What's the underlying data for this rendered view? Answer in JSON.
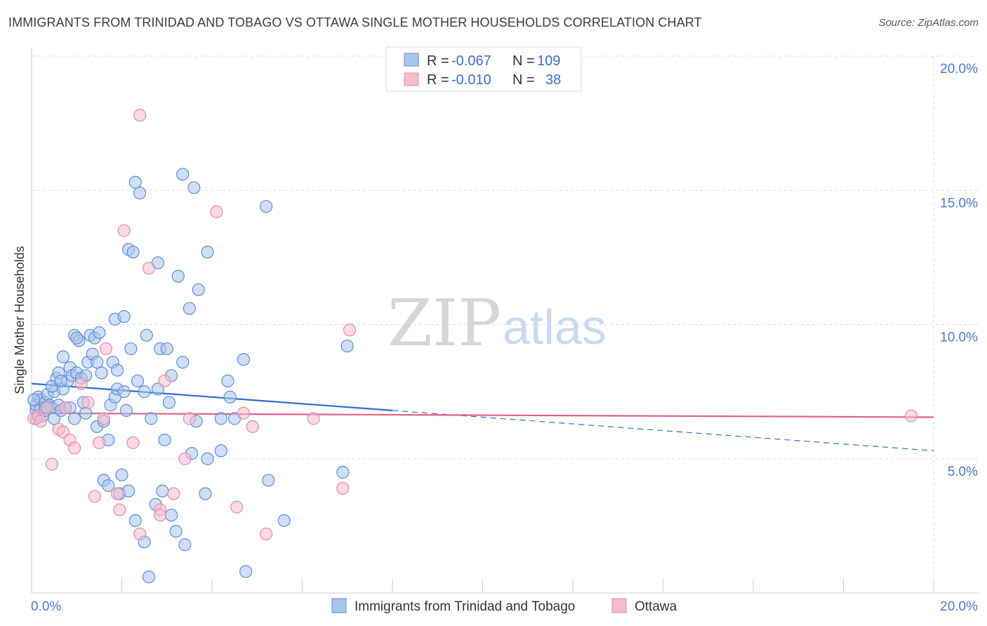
{
  "title": "IMMIGRANTS FROM TRINIDAD AND TOBAGO VS OTTAWA SINGLE MOTHER HOUSEHOLDS CORRELATION CHART",
  "source": "Source: ZipAtlas.com",
  "watermark": {
    "zip": "ZIP",
    "atlas": "atlas"
  },
  "legend": {
    "rows": [
      {
        "r_label": "R =",
        "r_value": "-0.067",
        "n_label": "N =",
        "n_value": "109"
      },
      {
        "r_label": "R =",
        "r_value": "-0.010",
        "n_label": "N =",
        "n_value": "38"
      }
    ]
  },
  "bottom_legend": {
    "items": [
      "Immigrants from Trinidad and Tobago",
      "Ottawa"
    ]
  },
  "colors": {
    "blue_fill": "#a9c5ee",
    "blue_stroke": "#5b8fd6",
    "blue_line": "#2f6fce",
    "pink_fill": "#f6bcd0",
    "pink_stroke": "#e58aa8",
    "pink_line": "#e0628a",
    "grid": "#dcdcdc",
    "axis_text": "#4a7bc8"
  },
  "chart_data": {
    "type": "scatter",
    "title": "IMMIGRANTS FROM TRINIDAD AND TOBAGO VS OTTAWA SINGLE MOTHER HOUSEHOLDS CORRELATION CHART",
    "xlabel": "",
    "ylabel": "Single Mother Households",
    "xlim": [
      0,
      20
    ],
    "ylim": [
      0,
      20
    ],
    "x_tick_labels": [
      "0.0%",
      "20.0%"
    ],
    "y_ticks": [
      5,
      10,
      15,
      20
    ],
    "y_tick_labels": [
      "5.0%",
      "10.0%",
      "15.0%",
      "20.0%"
    ],
    "grid": true,
    "legend_position": "top-center",
    "series": [
      {
        "name": "Immigrants from Trinidad and Tobago",
        "color": "#a9c5ee",
        "points": [
          [
            0.1,
            6.8
          ],
          [
            0.1,
            7.0
          ],
          [
            0.15,
            7.3
          ],
          [
            0.2,
            6.9
          ],
          [
            0.2,
            7.2
          ],
          [
            0.25,
            6.6
          ],
          [
            0.3,
            7.1
          ],
          [
            0.3,
            6.8
          ],
          [
            0.35,
            7.4
          ],
          [
            0.4,
            7.0
          ],
          [
            0.45,
            6.9
          ],
          [
            0.5,
            7.5
          ],
          [
            0.5,
            6.5
          ],
          [
            0.55,
            8.0
          ],
          [
            0.6,
            7.0
          ],
          [
            0.6,
            8.2
          ],
          [
            0.65,
            6.8
          ],
          [
            0.7,
            7.6
          ],
          [
            0.7,
            8.8
          ],
          [
            0.75,
            6.9
          ],
          [
            0.8,
            7.9
          ],
          [
            0.85,
            8.4
          ],
          [
            0.9,
            8.1
          ],
          [
            0.95,
            6.5
          ],
          [
            0.95,
            9.6
          ],
          [
            1.0,
            8.2
          ],
          [
            1.05,
            9.4
          ],
          [
            1.1,
            8.0
          ],
          [
            1.15,
            7.1
          ],
          [
            1.2,
            6.7
          ],
          [
            1.25,
            8.6
          ],
          [
            1.3,
            9.6
          ],
          [
            1.35,
            8.9
          ],
          [
            1.4,
            9.5
          ],
          [
            1.45,
            8.6
          ],
          [
            1.45,
            6.2
          ],
          [
            1.5,
            9.7
          ],
          [
            1.55,
            8.2
          ],
          [
            1.6,
            4.2
          ],
          [
            1.6,
            6.4
          ],
          [
            1.7,
            5.7
          ],
          [
            1.7,
            4.0
          ],
          [
            1.75,
            7.0
          ],
          [
            1.8,
            8.6
          ],
          [
            1.85,
            10.2
          ],
          [
            1.85,
            7.3
          ],
          [
            1.9,
            7.6
          ],
          [
            1.9,
            8.3
          ],
          [
            1.95,
            3.7
          ],
          [
            2.0,
            4.4
          ],
          [
            2.05,
            7.5
          ],
          [
            2.05,
            10.3
          ],
          [
            2.1,
            6.8
          ],
          [
            2.15,
            12.8
          ],
          [
            2.15,
            3.8
          ],
          [
            2.2,
            9.1
          ],
          [
            2.25,
            12.7
          ],
          [
            2.3,
            15.3
          ],
          [
            2.3,
            2.7
          ],
          [
            2.35,
            7.9
          ],
          [
            2.4,
            14.9
          ],
          [
            2.5,
            1.9
          ],
          [
            2.5,
            7.5
          ],
          [
            2.55,
            9.6
          ],
          [
            2.6,
            0.6
          ],
          [
            2.65,
            6.5
          ],
          [
            2.75,
            3.3
          ],
          [
            2.8,
            12.3
          ],
          [
            2.8,
            7.6
          ],
          [
            2.85,
            9.1
          ],
          [
            2.9,
            3.8
          ],
          [
            2.95,
            5.7
          ],
          [
            3.0,
            9.1
          ],
          [
            3.05,
            7.1
          ],
          [
            3.1,
            8.1
          ],
          [
            3.1,
            2.9
          ],
          [
            3.2,
            2.3
          ],
          [
            3.25,
            11.8
          ],
          [
            3.35,
            15.6
          ],
          [
            3.35,
            8.6
          ],
          [
            3.4,
            1.8
          ],
          [
            3.5,
            10.6
          ],
          [
            3.55,
            5.2
          ],
          [
            3.6,
            15.1
          ],
          [
            3.65,
            6.4
          ],
          [
            3.7,
            11.3
          ],
          [
            3.85,
            3.7
          ],
          [
            3.9,
            12.7
          ],
          [
            3.9,
            5.0
          ],
          [
            4.2,
            5.3
          ],
          [
            4.2,
            6.5
          ],
          [
            4.35,
            7.9
          ],
          [
            4.4,
            7.3
          ],
          [
            4.5,
            6.5
          ],
          [
            4.7,
            8.7
          ],
          [
            4.75,
            0.8
          ],
          [
            5.2,
            14.4
          ],
          [
            5.25,
            4.2
          ],
          [
            5.6,
            2.7
          ],
          [
            6.9,
            4.5
          ],
          [
            7.0,
            9.2
          ],
          [
            0.05,
            7.2
          ],
          [
            0.1,
            6.5
          ],
          [
            0.3,
            6.9
          ],
          [
            0.45,
            7.7
          ],
          [
            0.65,
            7.9
          ],
          [
            0.85,
            6.9
          ],
          [
            1.0,
            9.5
          ],
          [
            1.2,
            8.1
          ]
        ]
      },
      {
        "name": "Ottawa",
        "color": "#f6bcd0",
        "points": [
          [
            0.05,
            6.5
          ],
          [
            0.15,
            6.6
          ],
          [
            0.2,
            6.4
          ],
          [
            0.35,
            6.9
          ],
          [
            0.45,
            4.8
          ],
          [
            0.6,
            6.1
          ],
          [
            0.7,
            6.0
          ],
          [
            0.75,
            6.9
          ],
          [
            0.85,
            5.7
          ],
          [
            0.95,
            5.4
          ],
          [
            1.1,
            7.8
          ],
          [
            1.25,
            7.1
          ],
          [
            1.4,
            3.6
          ],
          [
            1.5,
            5.6
          ],
          [
            1.6,
            6.5
          ],
          [
            1.65,
            9.1
          ],
          [
            1.9,
            3.7
          ],
          [
            1.95,
            3.1
          ],
          [
            2.05,
            13.5
          ],
          [
            2.25,
            5.6
          ],
          [
            2.4,
            17.8
          ],
          [
            2.4,
            2.2
          ],
          [
            2.6,
            12.1
          ],
          [
            2.85,
            3.1
          ],
          [
            2.85,
            2.9
          ],
          [
            2.95,
            7.9
          ],
          [
            3.15,
            3.7
          ],
          [
            3.4,
            5.0
          ],
          [
            3.5,
            6.5
          ],
          [
            4.1,
            14.2
          ],
          [
            4.55,
            3.2
          ],
          [
            4.7,
            6.7
          ],
          [
            4.9,
            6.2
          ],
          [
            5.2,
            2.2
          ],
          [
            6.25,
            6.5
          ],
          [
            6.9,
            3.9
          ],
          [
            7.05,
            9.8
          ],
          [
            19.5,
            6.6
          ]
        ]
      }
    ],
    "trend_lines": [
      {
        "series": "Immigrants from Trinidad and Tobago",
        "solid_x": [
          0,
          8
        ],
        "y_at": [
          7.8,
          6.8
        ],
        "dashed_x": [
          8,
          20
        ],
        "dashed_y_end": 5.3
      },
      {
        "series": "Ottawa",
        "solid_x": [
          0,
          20
        ],
        "y_at": [
          6.7,
          6.55
        ]
      }
    ]
  }
}
